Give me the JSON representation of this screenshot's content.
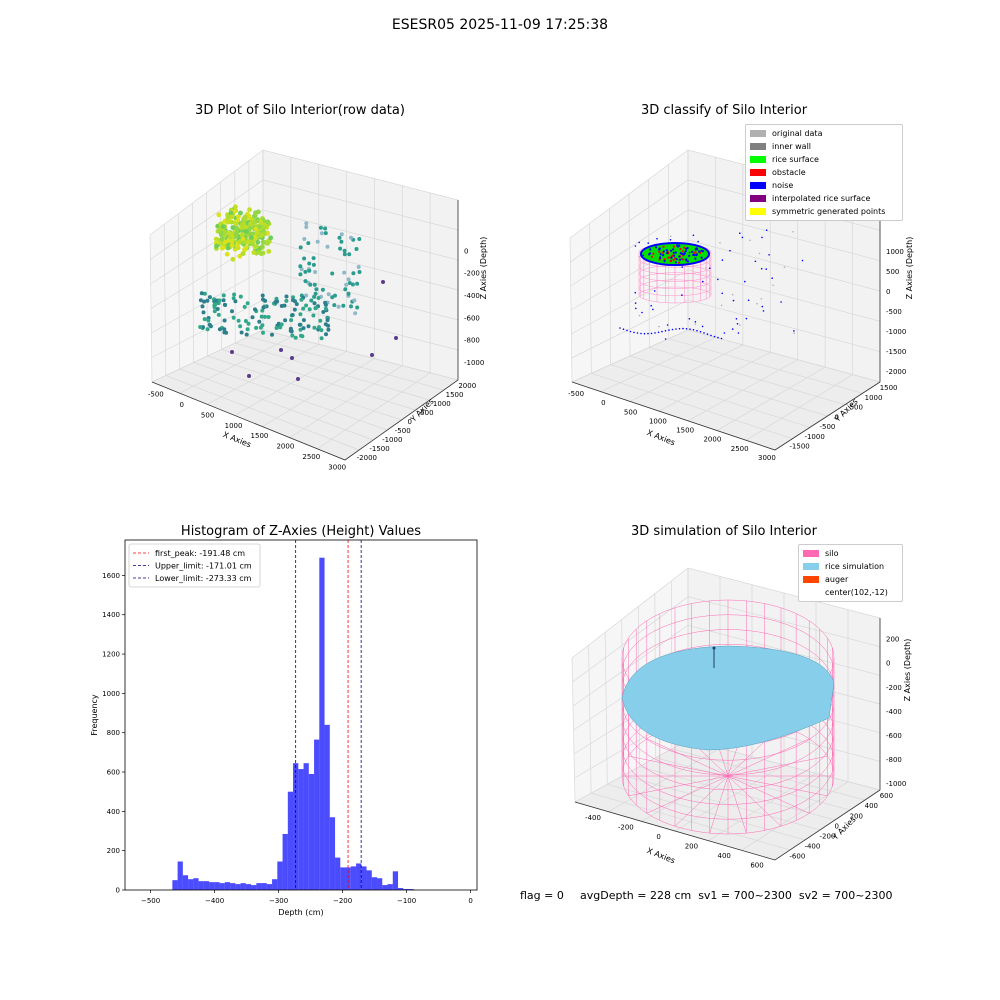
{
  "suptitle": "ESESR05 2025-11-09 17:25:38",
  "panels": {
    "raw": {
      "title": "3D Plot of Silo Interior(row data)",
      "xlabel": "X Axies",
      "ylabel": "Y Axies",
      "zlabel": "Z Axies (Depth)",
      "xticks": [
        "-500",
        "0",
        "500",
        "1000",
        "1500",
        "2000",
        "2500",
        "3000"
      ],
      "yticks": [
        "-2000",
        "-1500",
        "-1000",
        "-500",
        "0",
        "500",
        "1000",
        "1500",
        "2000"
      ],
      "zticks": [
        "0",
        "-200",
        "-400",
        "-600",
        "-800",
        "-1000"
      ]
    },
    "classify": {
      "title": "3D classify of Silo Interior",
      "xlabel": "X Axies",
      "ylabel": "Y Axies",
      "zlabel": "Z Axies (Depth)",
      "xticks": [
        "-500",
        "0",
        "500",
        "1000",
        "1500",
        "2000",
        "2500",
        "3000"
      ],
      "yticks": [
        "-1500",
        "-1000",
        "-500",
        "0",
        "500",
        "1000",
        "1500"
      ],
      "zticks": [
        "1000",
        "500",
        "0",
        "-500",
        "-1000",
        "-1500",
        "-2000"
      ],
      "legend": [
        {
          "label": "original data",
          "color": "#b0b0b0"
        },
        {
          "label": "inner wall",
          "color": "#808080"
        },
        {
          "label": "rice surface",
          "color": "#00ff00"
        },
        {
          "label": "obstacle",
          "color": "#ff0000"
        },
        {
          "label": "noise",
          "color": "#0000ff"
        },
        {
          "label": "interpolated rice surface",
          "color": "#800080"
        },
        {
          "label": "symmetric generated points",
          "color": "#ffff00"
        }
      ]
    },
    "simulation": {
      "title": "3D simulation of Silo Interior",
      "xlabel": "X Axies",
      "ylabel": "Y Axies",
      "zlabel": "Z Axies (Depth)",
      "xticks": [
        "-400",
        "-200",
        "0",
        "200",
        "400",
        "600"
      ],
      "yticks": [
        "-600",
        "-400",
        "-200",
        "0",
        "200",
        "400",
        "600"
      ],
      "zticks": [
        "200",
        "0",
        "-200",
        "-400",
        "-600",
        "-800",
        "-1000"
      ],
      "legend": [
        {
          "label": "silo",
          "color": "#ff69b4"
        },
        {
          "label": "rice simulation",
          "color": "#87ceeb"
        },
        {
          "label": "auger",
          "color": "#ff4500"
        },
        {
          "label": "center(102,-12)",
          "color": ""
        }
      ]
    }
  },
  "footer": {
    "flag": "flag = 0",
    "avg": "avgDepth = 228 cm  sv1 = 700~2300  sv2 = 700~2300"
  },
  "chart_data": {
    "type": "bar",
    "title": "Histogram of Z-Axies (Height) Values",
    "xlabel": "Depth (cm)",
    "ylabel": "Frequency",
    "xlim": [
      -540,
      10
    ],
    "ylim": [
      0,
      1780
    ],
    "xticks": [
      -500,
      -400,
      -300,
      -200,
      -100,
      0
    ],
    "yticks": [
      0,
      200,
      400,
      600,
      800,
      1000,
      1200,
      1400,
      1600
    ],
    "bar_color": "#0000ff",
    "bins": {
      "start": -466,
      "width": 8.2,
      "values": [
        50,
        145,
        75,
        55,
        60,
        45,
        45,
        40,
        40,
        35,
        40,
        35,
        30,
        35,
        30,
        25,
        35,
        35,
        30,
        55,
        145,
        285,
        500,
        645,
        615,
        645,
        590,
        765,
        1690,
        840,
        370,
        165,
        115,
        115,
        120,
        135,
        120,
        100,
        65,
        60,
        25,
        30,
        95,
        10,
        5,
        5
      ]
    },
    "lines": [
      {
        "label": "first_peak: -191.48 cm",
        "x": -191.48,
        "color": "#ff0000"
      },
      {
        "label": "Upper_limit: -171.01 cm",
        "x": -171.01,
        "color": "#00008b"
      },
      {
        "label": "Lower_limit: -273.33 cm",
        "x": -273.33,
        "color": "#00008b"
      }
    ],
    "legend_position": "upper left",
    "grid": false
  }
}
